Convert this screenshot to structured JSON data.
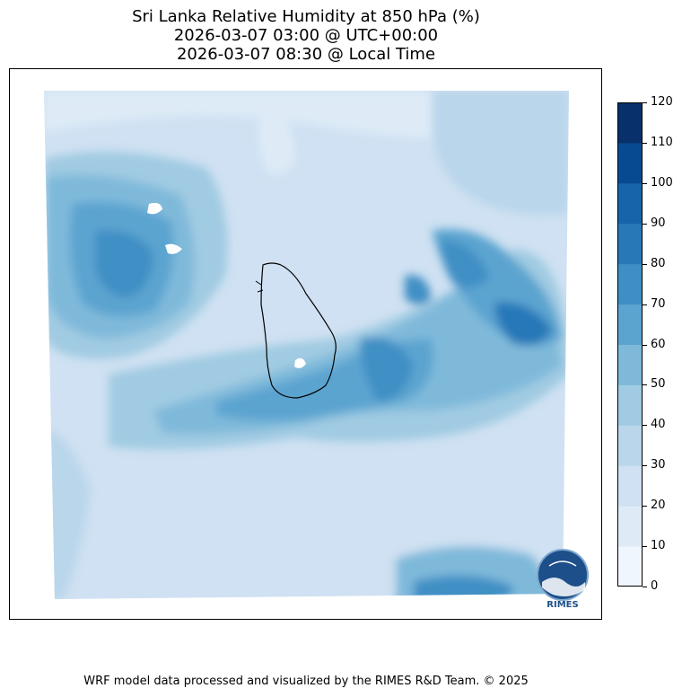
{
  "title": {
    "line1": "Sri Lanka Relative Humidity at 850 hPa (%)",
    "line2": "2026-03-07 03:00 @ UTC+00:00",
    "line3": "2026-03-07 08:30 @ Local Time"
  },
  "colorbar": {
    "ticks": [
      "0",
      "10",
      "20",
      "30",
      "40",
      "50",
      "60",
      "70",
      "80",
      "90",
      "100",
      "110",
      "120"
    ],
    "colors": [
      "#f0f6fd",
      "#deebf7",
      "#cfe1f2",
      "#bad6eb",
      "#a0cbe2",
      "#7fb9da",
      "#5ca4d0",
      "#3f8fc5",
      "#2878b8",
      "#1764ab",
      "#084a91",
      "#08306b"
    ]
  },
  "logo": {
    "text": "RIMES",
    "icon": "rimes-logo-icon"
  },
  "footer": "WRF model data processed and visualized by the RIMES R&D Team. © 2025"
}
